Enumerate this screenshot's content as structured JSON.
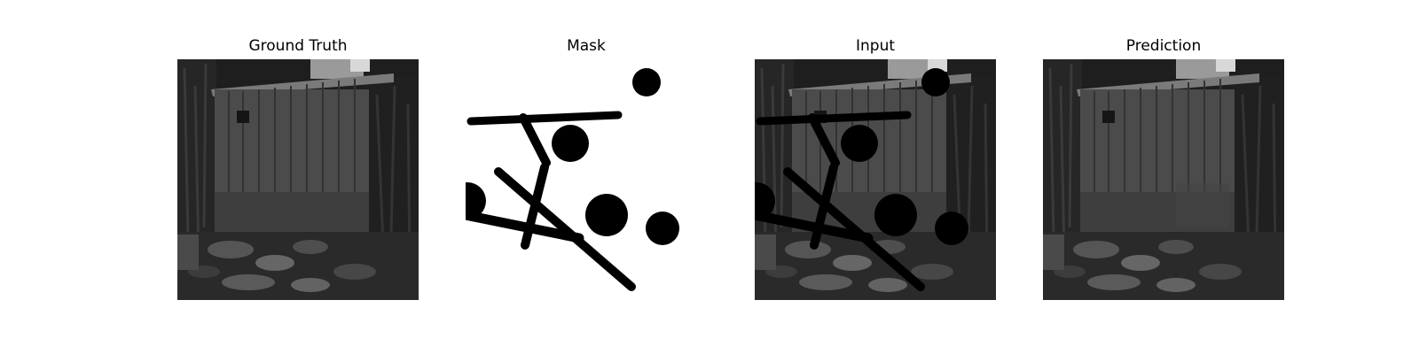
{
  "panels": [
    {
      "title": "Ground Truth"
    },
    {
      "title": "Mask"
    },
    {
      "title": "Input"
    },
    {
      "title": "Prediction"
    }
  ],
  "colors": {
    "background": "#ffffff",
    "mask_fill": "#000000",
    "mask_background": "#ffffff"
  }
}
